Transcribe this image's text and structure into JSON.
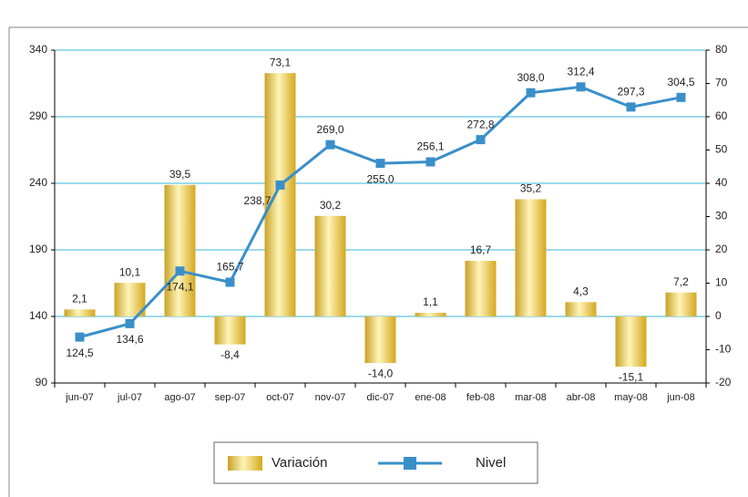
{
  "chart_data": {
    "type": "bar-line",
    "categories": [
      "jun-07",
      "jul-07",
      "ago-07",
      "sep-07",
      "oct-07",
      "nov-07",
      "dic-07",
      "ene-08",
      "feb-08",
      "mar-08",
      "abr-08",
      "may-08",
      "jun-08"
    ],
    "series": [
      {
        "name": "Variación",
        "type": "bar",
        "axis": "y2",
        "color": "#e6c029",
        "values": [
          2.1,
          10.1,
          39.5,
          -8.4,
          73.1,
          30.2,
          -14.0,
          1.1,
          16.7,
          35.2,
          4.3,
          -15.1,
          7.2
        ],
        "value_labels": [
          "2,1",
          "10,1",
          "39,5",
          "-8,4",
          "73,1",
          "30,2",
          "-14,0",
          "1,1",
          "16,7",
          "35,2",
          "4,3",
          "-15,1",
          "7,2"
        ]
      },
      {
        "name": "Nivel",
        "type": "line",
        "axis": "y",
        "color": "#3a8fc9",
        "values": [
          124.5,
          134.6,
          174.1,
          165.7,
          238.7,
          269.0,
          255.0,
          256.1,
          272.8,
          308.0,
          312.4,
          297.3,
          304.5
        ],
        "value_labels": [
          "124,5",
          "134,6",
          "174,1",
          "165,7",
          "238,7",
          "269,0",
          "255,0",
          "256,1",
          "272,8",
          "308,0",
          "312,4",
          "297,3",
          "304,5"
        ]
      }
    ],
    "ylim": [
      90,
      340
    ],
    "yticks": [
      90,
      140,
      190,
      240,
      290,
      340
    ],
    "y2lim": [
      -20,
      80
    ],
    "y2ticks": [
      -20,
      -10,
      0,
      10,
      20,
      30,
      40,
      50,
      60,
      70,
      80
    ],
    "grid": true
  }
}
